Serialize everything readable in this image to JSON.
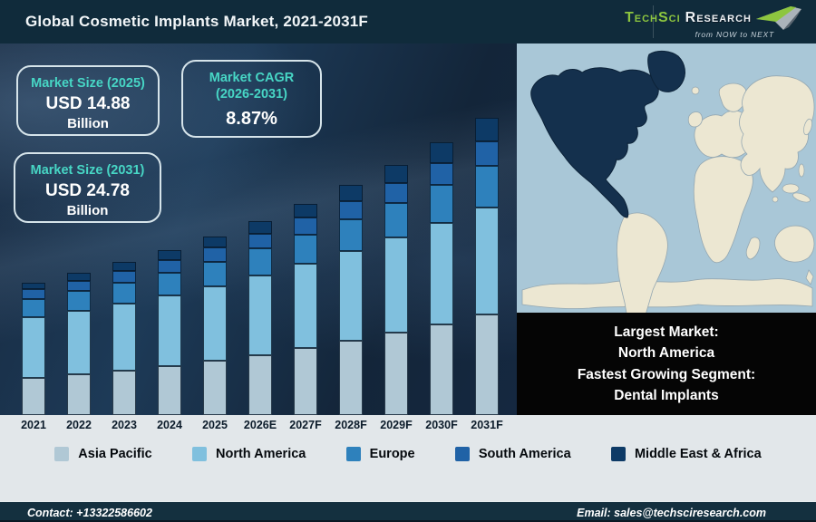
{
  "header": {
    "title": "Global Cosmetic Implants Market, 2021-2031F",
    "logo": {
      "brand_primary": "TechSci",
      "brand_secondary": "Research",
      "tagline": "from NOW to NEXT"
    }
  },
  "stats": [
    {
      "label": "Market Size (2025)",
      "value": "USD 14.88",
      "unit": "Billion"
    },
    {
      "label": "Market CAGR (2026-2031)",
      "value": "8.87%",
      "unit": ""
    },
    {
      "label": "Market Size (2031)",
      "value": "USD 24.78",
      "unit": "Billion"
    }
  ],
  "highlight_box": {
    "lines": [
      "Largest Market:",
      "North America",
      "Fastest Growing Segment:",
      "Dental Implants"
    ]
  },
  "footer": {
    "contact": "Contact: +13322586602",
    "email": "Email: sales@techsciresearch.com"
  },
  "colors": {
    "header_bg": "#102b3b",
    "panel_bg": "#1a3350",
    "accent_teal": "#47d6c5",
    "logo_green": "#8dc63f",
    "band_bg": "#e2e7ea",
    "footer_bg": "#14303f",
    "map_ocean": "#a9c7d7",
    "map_land": "#ece7d2",
    "map_highlight": "#14304d",
    "info_box_bg": "#050505"
  },
  "chart_data": {
    "type": "bar",
    "stacked": true,
    "title": "Global Cosmetic Implants Market, 2021-2031F",
    "unit": "USD Billion",
    "categories": [
      "2021",
      "2022",
      "2023",
      "2024",
      "2025",
      "2026E",
      "2027F",
      "2028F",
      "2029F",
      "2030F",
      "2031F"
    ],
    "series": [
      {
        "name": "Asia Pacific",
        "color": "#b0c8d5",
        "values": [
          3.09,
          3.39,
          3.72,
          4.1,
          4.52,
          5.02,
          5.57,
          6.18,
          6.86,
          7.6,
          8.43
        ]
      },
      {
        "name": "North America",
        "color": "#80c0de",
        "values": [
          5.08,
          5.33,
          5.61,
          5.91,
          6.25,
          6.64,
          7.06,
          7.49,
          7.94,
          8.42,
          8.92
        ]
      },
      {
        "name": "Europe",
        "color": "#2e81bc",
        "values": [
          1.49,
          1.61,
          1.73,
          1.88,
          2.04,
          2.23,
          2.43,
          2.66,
          2.91,
          3.18,
          3.47
        ]
      },
      {
        "name": "South America",
        "color": "#2062a6",
        "values": [
          0.83,
          0.9,
          0.97,
          1.06,
          1.16,
          1.27,
          1.4,
          1.53,
          1.68,
          1.85,
          2.03
        ]
      },
      {
        "name": "Middle East & Africa",
        "color": "#0d3a66",
        "values": [
          0.56,
          0.62,
          0.72,
          0.8,
          0.91,
          1.04,
          1.18,
          1.34,
          1.51,
          1.71,
          1.93
        ]
      }
    ],
    "totals": [
      11.05,
      11.85,
      12.75,
      13.75,
      14.88,
      16.2,
      17.64,
      19.2,
      20.9,
      22.76,
      24.78
    ],
    "ylim": [
      0,
      31
    ],
    "legend_position": "bottom",
    "axis": {
      "x_visible": true,
      "y_visible": false,
      "grid": false
    }
  }
}
